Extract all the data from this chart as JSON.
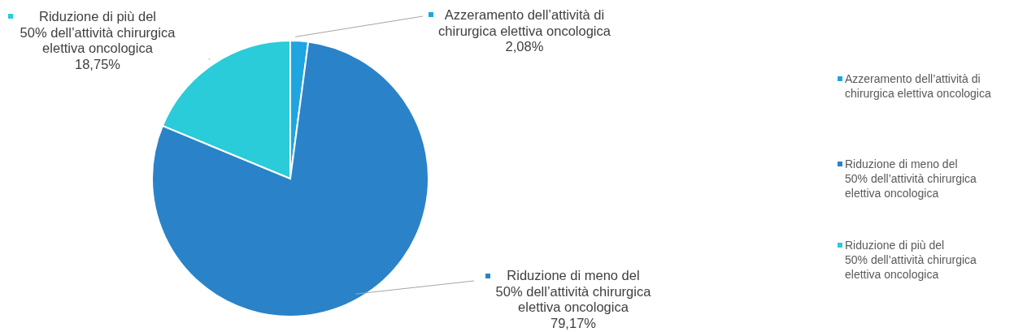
{
  "chart_data": {
    "type": "pie",
    "categories": [
      "Azzeramento dell’attività di chirurgica elettiva oncologica",
      "Riduzione di meno del 50% dell’attività chirurgica elettiva oncologica",
      "Riduzione di più del 50% dell’attività chirurgica elettiva oncologica"
    ],
    "values": [
      2.08,
      79.17,
      18.75
    ],
    "colors": [
      "#1fa5e0",
      "#2a83c8",
      "#29ccd8"
    ],
    "value_labels": [
      "2,08%",
      "79,17%",
      "18,75%"
    ],
    "legend": "right"
  }
}
